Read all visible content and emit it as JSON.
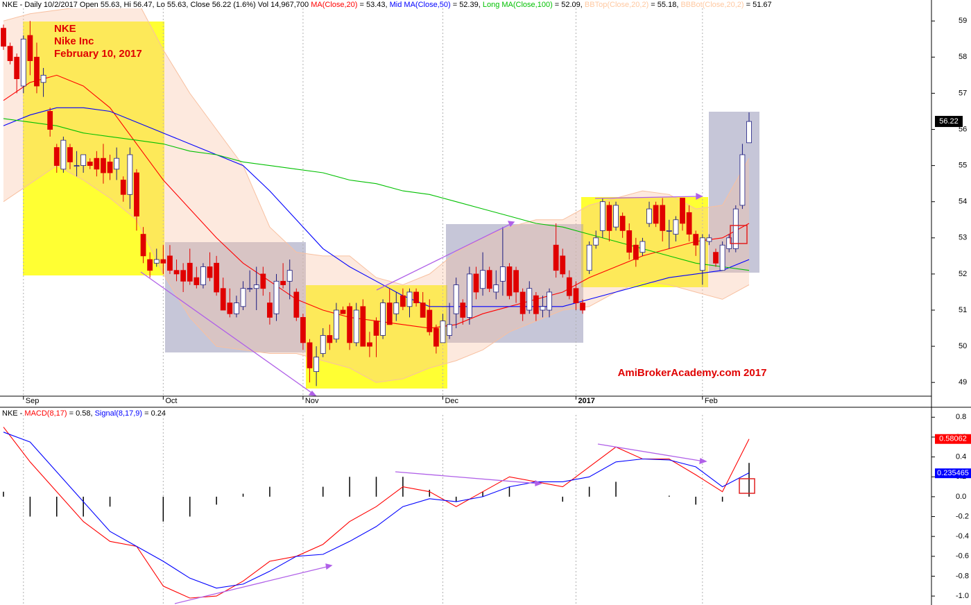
{
  "chart_data": [
    {
      "type": "candlestick",
      "header": [
        {
          "text": "NKE - Daily 10/2/2017 Open 55.63, Hi 56.47, Lo 55.63, Close 56.22 (1.6%) Vol 14,967,700 ",
          "color": "#000000"
        },
        {
          "text": "MA(Close,20)",
          "color": "#ff0000"
        },
        {
          "text": " = 53.43, ",
          "color": "#000000"
        },
        {
          "text": "Mid MA(Close,50)",
          "color": "#0000ff"
        },
        {
          "text": " = 52.39, ",
          "color": "#000000"
        },
        {
          "text": "Long MA(Close,100)",
          "color": "#00c000"
        },
        {
          "text": " = 52.09, ",
          "color": "#000000"
        },
        {
          "text": "BBTop(Close,20,2)",
          "color": "#ffc8a0"
        },
        {
          "text": " = 55.18, ",
          "color": "#000000"
        },
        {
          "text": "BBBot(Close,20,2)",
          "color": "#ffc8a0"
        },
        {
          "text": " = 51.67",
          "color": "#000000"
        }
      ],
      "annotations": [
        "NKE",
        "Nike Inc",
        "February 10, 2017"
      ],
      "watermark": "AmiBrokerAcademy.com  2017",
      "xlim": [
        -0.52,
        139.4
      ],
      "xticks": [
        {
          "value": 3,
          "label": "Sep"
        },
        {
          "value": 24,
          "label": "Oct"
        },
        {
          "value": 45,
          "label": "Nov"
        },
        {
          "value": 66,
          "label": "Dec"
        },
        {
          "value": 86,
          "label": "2017"
        },
        {
          "value": 105,
          "label": "Feb"
        }
      ],
      "ylim": [
        48.62,
        59.58
      ],
      "yticks": [
        49,
        50,
        51,
        52,
        53,
        54,
        55,
        56,
        57,
        58,
        59
      ],
      "last_price": 56.22,
      "up_color": "#ffffff",
      "up_outline": "#1a1a80",
      "down_color": "#e00000",
      "candles": [
        [
          58.8,
          58.9,
          58.2,
          58.3
        ],
        [
          58.3,
          58.4,
          57.8,
          57.9
        ],
        [
          58.0,
          58.1,
          57.0,
          57.4
        ],
        [
          57.2,
          58.6,
          57.0,
          58.5
        ],
        [
          58.6,
          59.0,
          57.5,
          57.9
        ],
        [
          58.0,
          58.4,
          57.0,
          57.2
        ],
        [
          57.3,
          57.7,
          56.9,
          57.5
        ],
        [
          56.5,
          56.6,
          55.8,
          56.0
        ],
        [
          55.5,
          55.6,
          54.8,
          55.0
        ],
        [
          54.9,
          55.8,
          54.8,
          55.7
        ],
        [
          55.5,
          55.6,
          54.9,
          55.1
        ],
        [
          55.0,
          55.4,
          54.7,
          55.0
        ],
        [
          55.0,
          55.3,
          54.8,
          55.3
        ],
        [
          55.1,
          55.2,
          54.9,
          55.0
        ],
        [
          55.2,
          55.4,
          54.7,
          54.9
        ],
        [
          55.2,
          55.6,
          54.5,
          54.8
        ],
        [
          55.1,
          55.3,
          54.6,
          54.8
        ],
        [
          54.9,
          55.5,
          54.6,
          55.2
        ],
        [
          54.6,
          54.7,
          54.0,
          54.2
        ],
        [
          54.2,
          55.5,
          53.8,
          55.3
        ],
        [
          54.8,
          54.9,
          53.2,
          53.6
        ],
        [
          53.1,
          53.3,
          52.3,
          52.5
        ],
        [
          52.4,
          52.6,
          51.9,
          52.1
        ],
        [
          52.3,
          52.7,
          52.2,
          52.4
        ],
        [
          52.4,
          52.8,
          52.0,
          52.3
        ],
        [
          52.5,
          52.8,
          52.0,
          52.1
        ],
        [
          52.1,
          52.4,
          51.8,
          52.0
        ],
        [
          52.1,
          52.3,
          51.5,
          51.8
        ],
        [
          52.3,
          52.7,
          51.7,
          51.8
        ],
        [
          51.9,
          52.2,
          51.6,
          51.7
        ],
        [
          51.7,
          52.3,
          51.6,
          52.2
        ],
        [
          52.2,
          52.6,
          51.8,
          51.9
        ],
        [
          52.3,
          52.5,
          51.4,
          51.5
        ],
        [
          51.6,
          51.9,
          51.0,
          51.0
        ],
        [
          51.2,
          51.6,
          50.8,
          50.9
        ],
        [
          50.9,
          51.4,
          50.8,
          51.2
        ],
        [
          51.1,
          51.8,
          51.0,
          51.6
        ],
        [
          51.6,
          52.1,
          51.5,
          51.6
        ],
        [
          51.6,
          52.2,
          51.0,
          51.7
        ],
        [
          52.0,
          52.2,
          51.4,
          51.6
        ],
        [
          51.2,
          51.5,
          50.6,
          50.8
        ],
        [
          50.9,
          52.0,
          50.7,
          51.8
        ],
        [
          51.8,
          52.3,
          51.6,
          51.7
        ],
        [
          51.8,
          52.4,
          51.3,
          52.1
        ],
        [
          51.5,
          51.6,
          50.7,
          50.8
        ],
        [
          50.8,
          50.9,
          49.9,
          50.1
        ],
        [
          50.1,
          50.2,
          49.0,
          49.4
        ],
        [
          49.3,
          50.0,
          48.9,
          49.7
        ],
        [
          49.8,
          50.5,
          49.7,
          50.3
        ],
        [
          50.3,
          50.6,
          49.9,
          50.1
        ],
        [
          50.2,
          51.2,
          50.1,
          51.0
        ],
        [
          51.0,
          51.1,
          50.9,
          50.9
        ],
        [
          51.1,
          51.2,
          49.9,
          50.1
        ],
        [
          50.1,
          51.2,
          50.0,
          51.0
        ],
        [
          51.1,
          51.3,
          50.0,
          50.0
        ],
        [
          50.1,
          50.4,
          49.7,
          50.0
        ],
        [
          50.7,
          50.8,
          49.7,
          50.3
        ],
        [
          50.3,
          51.3,
          50.2,
          51.2
        ],
        [
          51.2,
          51.6,
          50.6,
          50.6
        ],
        [
          50.9,
          51.5,
          50.7,
          51.2
        ],
        [
          51.4,
          51.6,
          51.0,
          51.1
        ],
        [
          51.1,
          51.6,
          50.8,
          51.5
        ],
        [
          51.5,
          51.6,
          51.1,
          51.2
        ],
        [
          51.2,
          51.5,
          50.8,
          50.8
        ],
        [
          51.0,
          51.3,
          50.3,
          50.4
        ],
        [
          50.5,
          50.6,
          49.8,
          50.0
        ],
        [
          50.1,
          50.9,
          50.1,
          50.7
        ],
        [
          50.3,
          51.2,
          50.2,
          50.6
        ],
        [
          50.9,
          51.9,
          50.5,
          51.7
        ],
        [
          51.2,
          51.3,
          50.6,
          50.8
        ],
        [
          50.8,
          52.2,
          50.6,
          52.0
        ],
        [
          52.0,
          52.2,
          51.3,
          51.5
        ],
        [
          51.6,
          52.6,
          51.4,
          52.1
        ],
        [
          52.1,
          52.2,
          51.5,
          51.6
        ],
        [
          51.5,
          52.1,
          51.3,
          51.7
        ],
        [
          51.8,
          53.3,
          51.4,
          52.2
        ],
        [
          52.2,
          52.3,
          51.3,
          51.4
        ],
        [
          52.1,
          52.2,
          51.2,
          51.5
        ],
        [
          51.5,
          51.6,
          50.7,
          50.9
        ],
        [
          51.0,
          51.8,
          50.9,
          51.6
        ],
        [
          51.4,
          51.5,
          50.7,
          50.9
        ],
        [
          51.0,
          51.4,
          50.8,
          51.1
        ],
        [
          51.0,
          51.6,
          50.8,
          51.5
        ],
        [
          52.8,
          53.4,
          51.9,
          52.1
        ],
        [
          52.5,
          52.7,
          51.9,
          52.0
        ],
        [
          51.9,
          52.1,
          51.3,
          51.4
        ],
        [
          51.6,
          51.8,
          51.0,
          51.2
        ],
        [
          51.2,
          51.3,
          50.9,
          51.0
        ],
        [
          52.1,
          52.9,
          52.0,
          52.8
        ],
        [
          52.8,
          53.2,
          52.7,
          53.0
        ],
        [
          53.2,
          54.1,
          53.0,
          54.0
        ],
        [
          53.9,
          54.0,
          52.9,
          53.2
        ],
        [
          53.3,
          54.0,
          53.2,
          53.9
        ],
        [
          53.6,
          53.7,
          53.0,
          53.2
        ],
        [
          53.2,
          53.4,
          52.4,
          52.6
        ],
        [
          52.8,
          53.0,
          52.2,
          52.4
        ],
        [
          52.6,
          53.0,
          52.5,
          52.9
        ],
        [
          53.4,
          54.0,
          53.3,
          53.8
        ],
        [
          53.9,
          54.0,
          53.3,
          53.4
        ],
        [
          53.9,
          54.1,
          52.9,
          53.2
        ],
        [
          53.2,
          53.5,
          52.7,
          53.2
        ],
        [
          53.1,
          53.6,
          52.9,
          53.5
        ],
        [
          54.1,
          54.1,
          53.2,
          53.4
        ],
        [
          53.7,
          53.9,
          52.9,
          53.1
        ],
        [
          53.1,
          53.2,
          52.5,
          52.8
        ],
        [
          52.1,
          53.1,
          51.7,
          53.0
        ],
        [
          52.9,
          53.1,
          52.8,
          53.0
        ],
        [
          52.6,
          52.7,
          52.2,
          52.3
        ],
        [
          52.1,
          52.9,
          52.1,
          52.8
        ],
        [
          52.7,
          53.1,
          52.6,
          53.0
        ],
        [
          52.7,
          53.9,
          52.6,
          53.8
        ],
        [
          53.9,
          55.6,
          53.8,
          55.3
        ],
        [
          55.63,
          56.47,
          55.63,
          56.22
        ]
      ],
      "line_x": [
        0,
        4,
        8,
        12,
        16,
        20,
        24,
        28,
        32,
        36,
        40,
        44,
        48,
        52,
        56,
        60,
        64,
        68,
        72,
        76,
        80,
        84,
        88,
        92,
        96,
        100,
        104,
        108,
        112
      ],
      "band": {
        "name": "Bollinger",
        "color": "#f8c0a0",
        "top": [
          59.0,
          59.2,
          59.3,
          59.4,
          59.5,
          59.6,
          58.2,
          57.0,
          56.0,
          55.0,
          53.3,
          52.6,
          52.5,
          52.5,
          51.9,
          51.7,
          52.0,
          52.6,
          53.0,
          53.3,
          53.5,
          53.5,
          53.9,
          54.1,
          54.3,
          54.2,
          53.8,
          53.9,
          55.2
        ],
        "bottom": [
          54.0,
          54.5,
          55.0,
          54.6,
          54.1,
          53.5,
          52.0,
          50.8,
          50.0,
          49.9,
          49.8,
          49.8,
          49.6,
          49.4,
          49.0,
          49.1,
          49.4,
          49.6,
          49.9,
          50.4,
          50.7,
          51.0,
          51.1,
          51.5,
          51.8,
          51.7,
          51.5,
          51.3,
          51.7
        ]
      },
      "series": [
        {
          "name": "MA(Close,20)",
          "color": "#ff0000",
          "values": [
            56.8,
            57.3,
            57.5,
            57.2,
            56.6,
            55.6,
            54.6,
            53.8,
            53.0,
            52.3,
            51.8,
            51.3,
            51.0,
            50.8,
            50.7,
            50.6,
            50.5,
            50.6,
            50.9,
            51.1,
            51.3,
            51.5,
            51.9,
            52.2,
            52.5,
            52.7,
            52.9,
            53.0,
            53.4
          ]
        },
        {
          "name": "Mid MA(Close,50)",
          "color": "#0000ff",
          "values": [
            56.1,
            56.4,
            56.6,
            56.6,
            56.5,
            56.2,
            55.9,
            55.6,
            55.3,
            55.0,
            54.3,
            53.5,
            52.7,
            52.2,
            51.8,
            51.4,
            51.1,
            51.1,
            51.1,
            51.1,
            51.1,
            51.1,
            51.3,
            51.5,
            51.7,
            51.9,
            52.0,
            52.1,
            52.4
          ]
        },
        {
          "name": "Long MA(Close,100)",
          "color": "#00c000",
          "values": [
            56.3,
            56.2,
            56.1,
            55.9,
            55.8,
            55.7,
            55.6,
            55.4,
            55.3,
            55.1,
            55.0,
            54.9,
            54.8,
            54.6,
            54.5,
            54.3,
            54.2,
            54.0,
            53.8,
            53.6,
            53.4,
            53.3,
            53.1,
            52.9,
            52.7,
            52.5,
            52.3,
            52.2,
            52.1
          ]
        }
      ]
    },
    {
      "type": "macd",
      "header": [
        {
          "text": "NKE - ",
          "color": "#000000"
        },
        {
          "text": "MACD(8,17)",
          "color": "#ff0000"
        },
        {
          "text": " = 0.58, ",
          "color": "#000000"
        },
        {
          "text": "Signal(8,17,9)",
          "color": "#0000ff"
        },
        {
          "text": " = 0.24",
          "color": "#000000"
        }
      ],
      "xlim": [
        -0.52,
        139.4
      ],
      "ylim": [
        -1.09,
        0.9
      ],
      "yticks": [
        {
          "value": 0.8,
          "label": "0.8"
        },
        {
          "value": 0.6,
          "label": "0.6"
        },
        {
          "value": 0.4,
          "label": "0.4"
        },
        {
          "value": 0.2,
          "label": "0.2"
        },
        {
          "value": 0,
          "label": "0.0"
        },
        {
          "value": -0.2,
          "label": "-0.2"
        },
        {
          "value": -0.4,
          "label": "-0.4"
        },
        {
          "value": -0.6,
          "label": "-0.6"
        },
        {
          "value": -0.8,
          "label": "-0.8"
        },
        {
          "value": -1.0,
          "label": "-1.0"
        }
      ],
      "x": [
        0,
        4,
        8,
        12,
        16,
        20,
        24,
        28,
        32,
        36,
        40,
        44,
        48,
        52,
        56,
        60,
        64,
        68,
        72,
        76,
        80,
        84,
        88,
        92,
        96,
        100,
        104,
        108,
        112
      ],
      "series": [
        {
          "name": "MACD(8,17)",
          "color": "#ff0000",
          "values": [
            0.7,
            0.35,
            0.05,
            -0.25,
            -0.45,
            -0.5,
            -0.9,
            -1.02,
            -1.0,
            -0.85,
            -0.65,
            -0.6,
            -0.48,
            -0.25,
            -0.1,
            0.1,
            0.05,
            -0.1,
            0.05,
            0.2,
            0.15,
            0.1,
            0.3,
            0.5,
            0.38,
            0.38,
            0.22,
            0.05,
            0.58
          ],
          "last": 0.58062
        },
        {
          "name": "Signal(8,17,9)",
          "color": "#0000ff",
          "values": [
            0.65,
            0.55,
            0.25,
            -0.05,
            -0.35,
            -0.5,
            -0.65,
            -0.82,
            -0.92,
            -0.88,
            -0.75,
            -0.6,
            -0.58,
            -0.45,
            -0.3,
            -0.1,
            -0.02,
            -0.05,
            0.0,
            0.1,
            0.15,
            0.15,
            0.2,
            0.35,
            0.38,
            0.37,
            0.3,
            0.1,
            0.24
          ],
          "last": 0.235465
        }
      ],
      "histogram": {
        "color": "#000000",
        "values": [
          0.05,
          -0.2,
          -0.2,
          -0.2,
          -0.1,
          0.0,
          -0.25,
          -0.2,
          -0.08,
          0.03,
          0.1,
          0.0,
          0.1,
          0.2,
          0.2,
          0.2,
          0.07,
          -0.05,
          0.05,
          0.1,
          0.0,
          -0.05,
          0.1,
          0.15,
          0.0,
          0.01,
          -0.08,
          -0.05,
          0.34
        ]
      }
    }
  ]
}
